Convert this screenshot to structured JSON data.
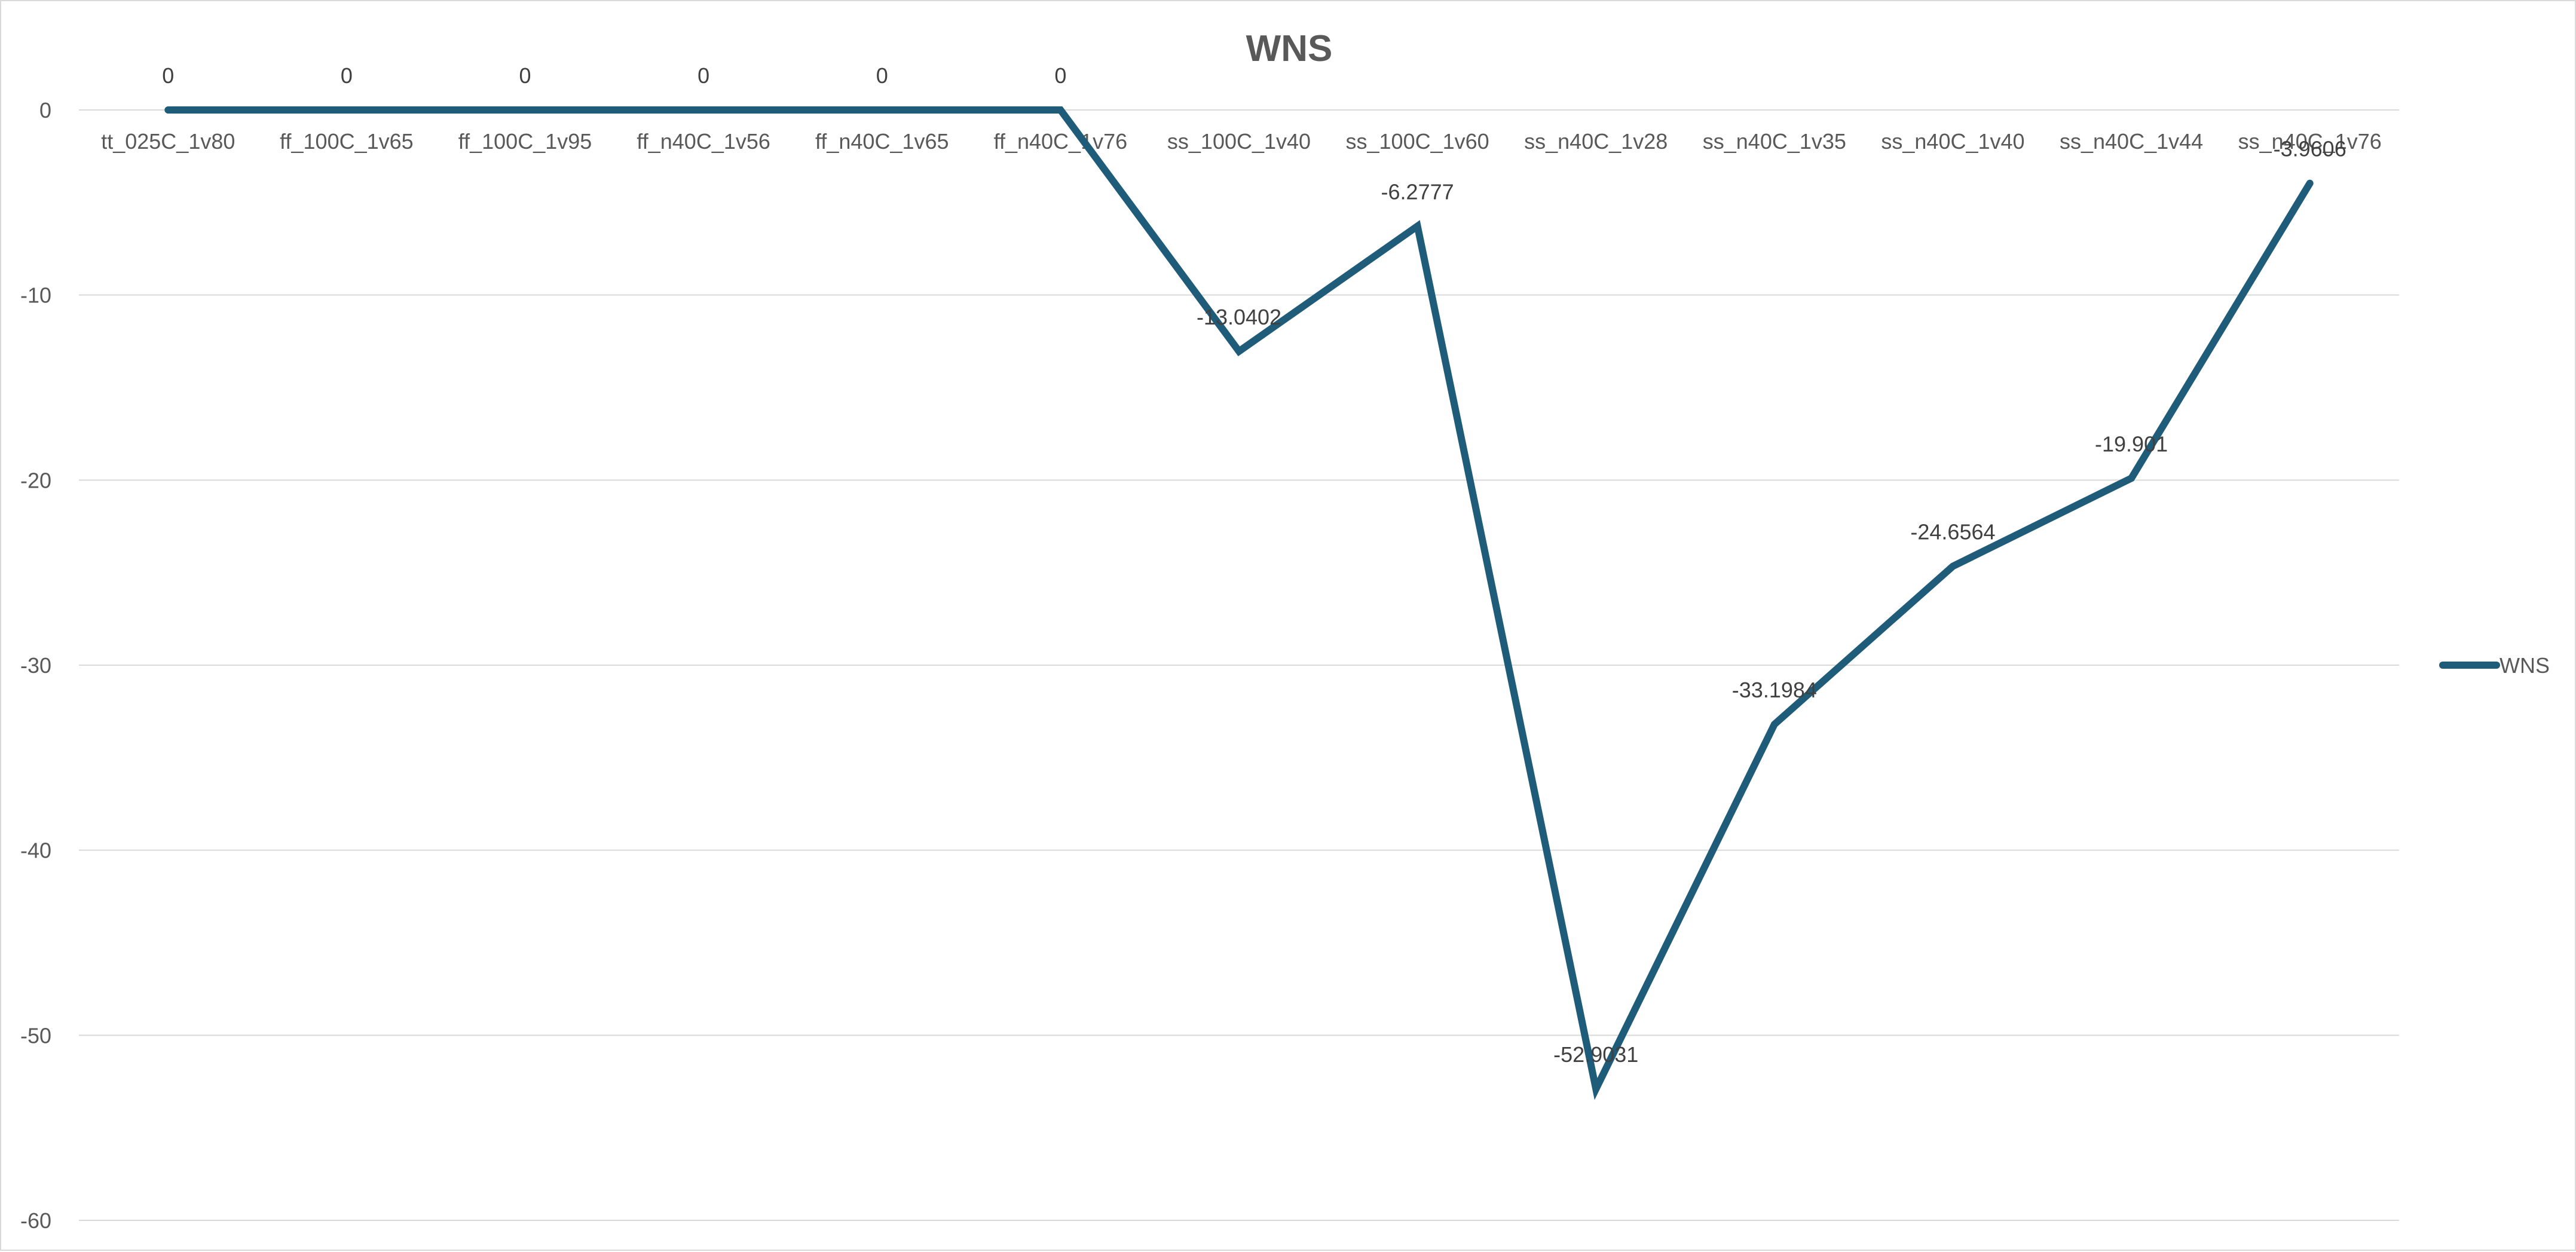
{
  "chart_data": {
    "type": "line",
    "title": "WNS",
    "xlabel": "",
    "ylabel": "",
    "categories": [
      "tt_025C_1v80",
      "ff_100C_1v65",
      "ff_100C_1v95",
      "ff_n40C_1v56",
      "ff_n40C_1v65",
      "ff_n40C_1v76",
      "ss_100C_1v40",
      "ss_100C_1v60",
      "ss_n40C_1v28",
      "ss_n40C_1v35",
      "ss_n40C_1v40",
      "ss_n40C_1v44",
      "ss_n40C_1v76"
    ],
    "series": [
      {
        "name": "WNS",
        "color": "#1f5c7a",
        "values": [
          0,
          0,
          0,
          0,
          0,
          0,
          -13.0402,
          -6.2777,
          -52.9031,
          -33.1984,
          -24.6564,
          -19.901,
          -3.9606
        ],
        "labels": [
          "0",
          "0",
          "0",
          "0",
          "0",
          "0",
          "-13.0402",
          "-6.2777",
          "-52.9031",
          "-33.1984",
          "-24.6564",
          "-19.901",
          "-3.9606"
        ]
      }
    ],
    "ylim": [
      -60,
      0
    ],
    "yticks": [
      0,
      -10,
      -20,
      -30,
      -40,
      -50,
      -60
    ],
    "ytick_labels": [
      "0",
      "-10",
      "-20",
      "-30",
      "-40",
      "-50",
      "-60"
    ],
    "grid": true,
    "legend": "right"
  }
}
